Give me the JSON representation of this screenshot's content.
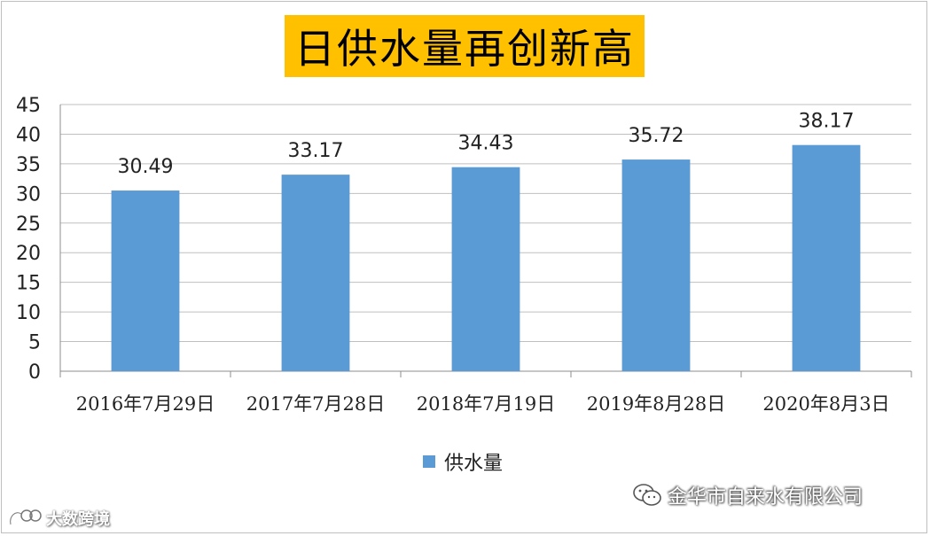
{
  "chart_data": {
    "type": "bar",
    "title": "日供水量再创新高",
    "categories": [
      "2016年7月29日",
      "2017年7月28日",
      "2018年7月19日",
      "2019年8月28日",
      "2020年8月3日"
    ],
    "series": [
      {
        "name": "供水量",
        "values": [
          30.49,
          33.17,
          34.43,
          35.72,
          38.17
        ],
        "color": "#5b9bd5"
      }
    ],
    "data_labels": [
      "30.49",
      "33.17",
      "34.43",
      "35.72",
      "38.17"
    ],
    "ylim": [
      0,
      45
    ],
    "yticks": [
      0,
      5,
      10,
      15,
      20,
      25,
      30,
      35,
      40,
      45
    ],
    "ytick_labels": [
      "0",
      "5",
      "10",
      "15",
      "20",
      "25",
      "30",
      "35",
      "40",
      "45"
    ],
    "grid": true,
    "legend_position": "bottom",
    "title_background": "#ffc000"
  },
  "watermark": {
    "text": "金华市自来水有限公司",
    "icon": "wechat-icon"
  },
  "brand": {
    "text": "大数跨境",
    "icon": "brand-logo-icon"
  }
}
